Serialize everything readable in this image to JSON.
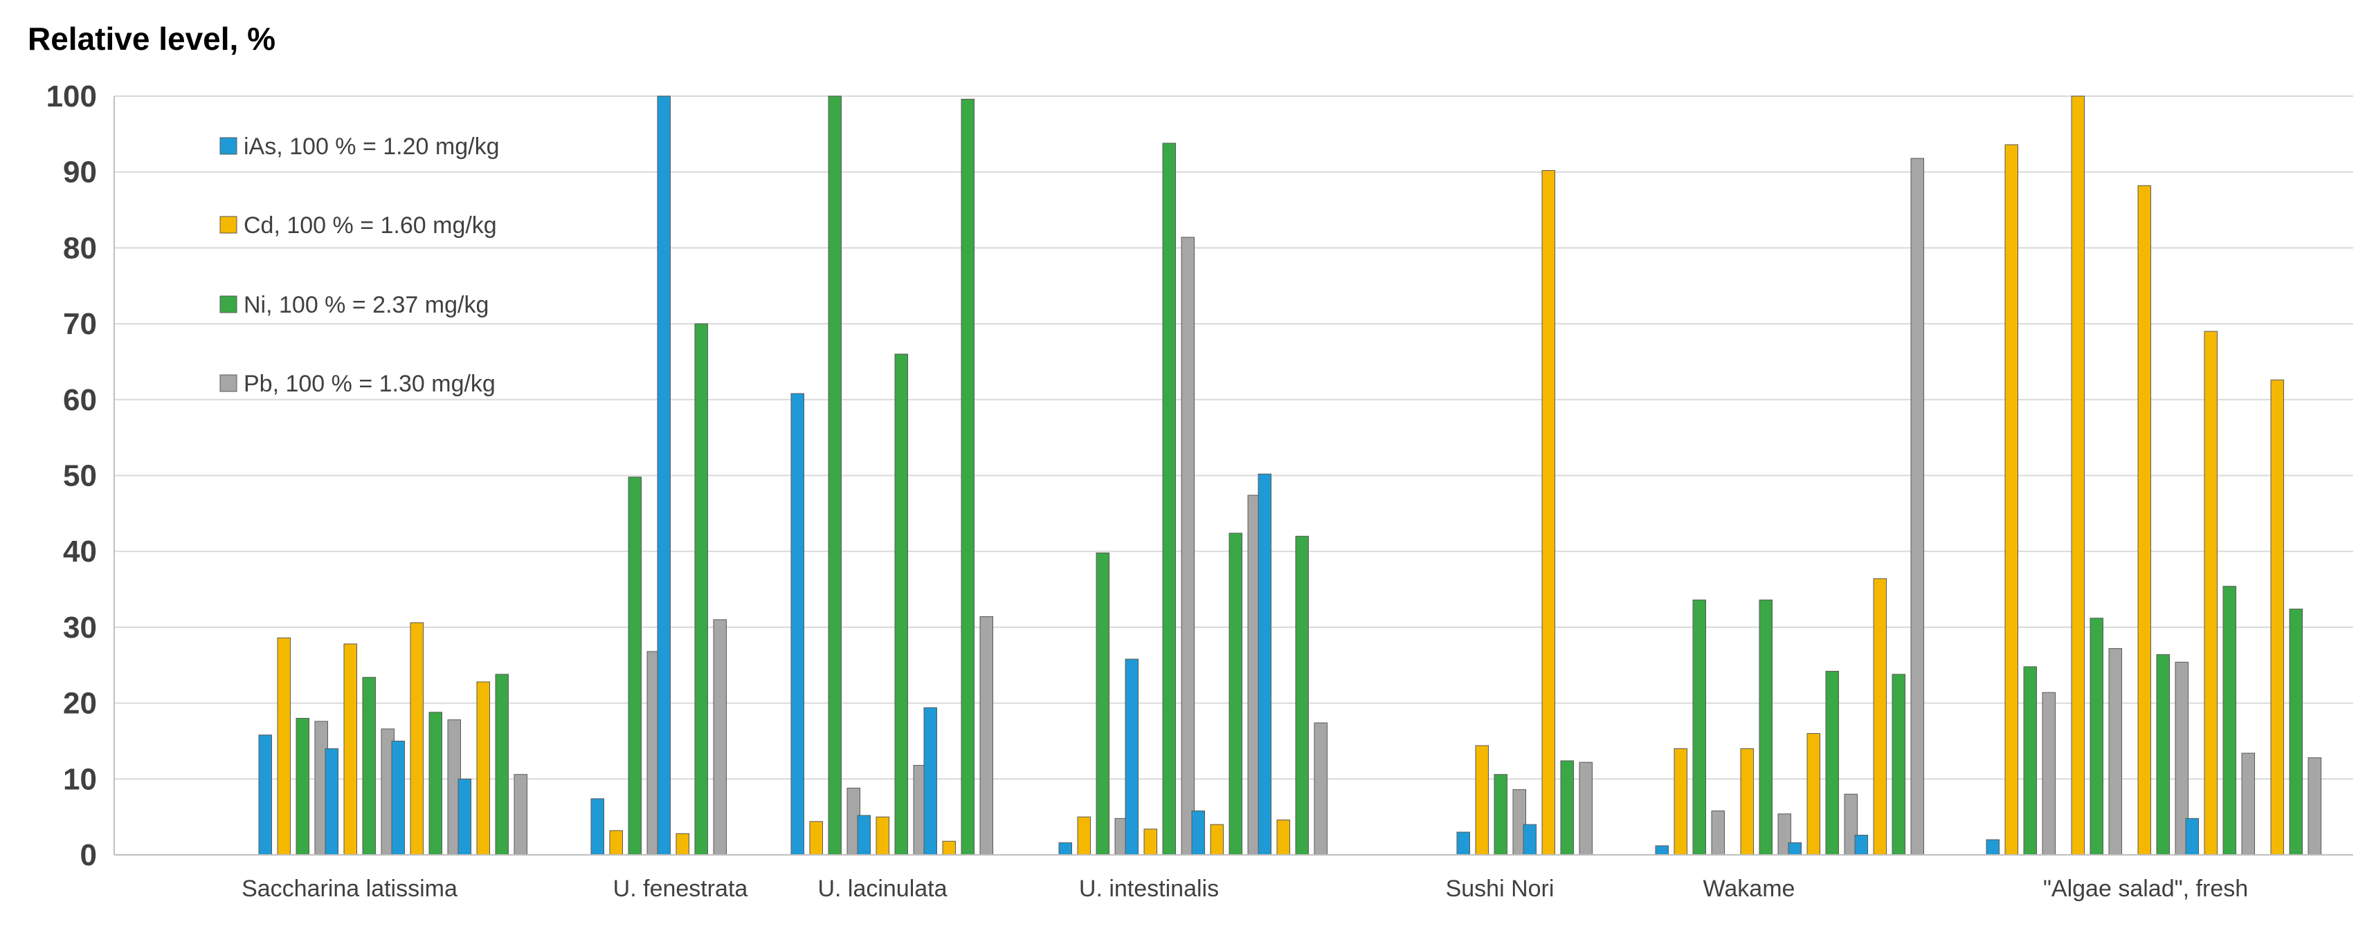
{
  "chart_data": {
    "type": "bar",
    "title": "",
    "ylabel": "Relative level, %",
    "xlabel": "",
    "ylim": [
      0,
      100
    ],
    "yticks": [
      0,
      10,
      20,
      30,
      40,
      50,
      60,
      70,
      80,
      90,
      100
    ],
    "grid": true,
    "legend_position": "top-left",
    "series": [
      {
        "name": "iAs, 100 % = 1.20 mg/kg",
        "color": "#1f9ad6"
      },
      {
        "name": "Cd, 100 % = 1.60 mg/kg",
        "color": "#f5b800"
      },
      {
        "name": "Ni, 100 % = 2.37 mg/kg",
        "color": "#3aa845"
      },
      {
        "name": "Pb, 100 % = 1.30 mg/kg",
        "color": "#a6a6a6"
      }
    ],
    "groups": [
      {
        "label": "Saccharina latissima",
        "samples": [
          [
            15.8,
            28.6,
            18.0,
            17.6
          ],
          [
            14.0,
            27.8,
            23.4,
            16.6
          ],
          [
            15.0,
            30.6,
            18.8,
            17.8
          ],
          [
            10.0,
            22.8,
            23.8,
            10.6
          ]
        ]
      },
      {
        "label": "U. fenestrata",
        "samples": [
          [
            7.4,
            3.2,
            49.8,
            26.8
          ],
          [
            100,
            2.8,
            70.0,
            31.0
          ]
        ]
      },
      {
        "label": "U. lacinulata",
        "samples": [
          [
            60.8,
            4.4,
            100,
            8.8
          ],
          [
            5.2,
            5.0,
            66.0,
            11.8
          ],
          [
            19.4,
            1.8,
            99.6,
            31.4
          ]
        ]
      },
      {
        "label": "U. intestinalis",
        "samples": [
          [
            1.6,
            5.0,
            39.8,
            4.8
          ],
          [
            25.8,
            3.4,
            93.8,
            81.4
          ],
          [
            5.8,
            4.0,
            42.4,
            47.4
          ],
          [
            50.2,
            4.6,
            42.0,
            17.4
          ]
        ]
      },
      {
        "label": "Sushi Nori",
        "samples": [
          [
            3.0,
            14.4,
            10.6,
            8.6
          ],
          [
            4.0,
            90.2,
            12.4,
            12.2
          ]
        ]
      },
      {
        "label": "Wakame",
        "samples": [
          [
            1.2,
            14.0,
            33.6,
            5.8
          ],
          [
            0,
            14.0,
            33.6,
            5.4
          ],
          [
            1.6,
            16.0,
            24.2,
            8.0
          ],
          [
            2.6,
            36.4,
            23.8,
            91.8
          ]
        ]
      },
      {
        "label": "\"Algae salad\", fresh",
        "samples": [
          [
            2.0,
            93.6,
            24.8,
            21.4
          ],
          [
            0,
            100,
            31.2,
            27.2
          ],
          [
            0,
            88.2,
            26.4,
            25.4
          ],
          [
            4.8,
            69.0,
            35.4,
            13.4
          ],
          [
            0,
            62.6,
            32.4,
            12.8
          ]
        ]
      }
    ]
  }
}
